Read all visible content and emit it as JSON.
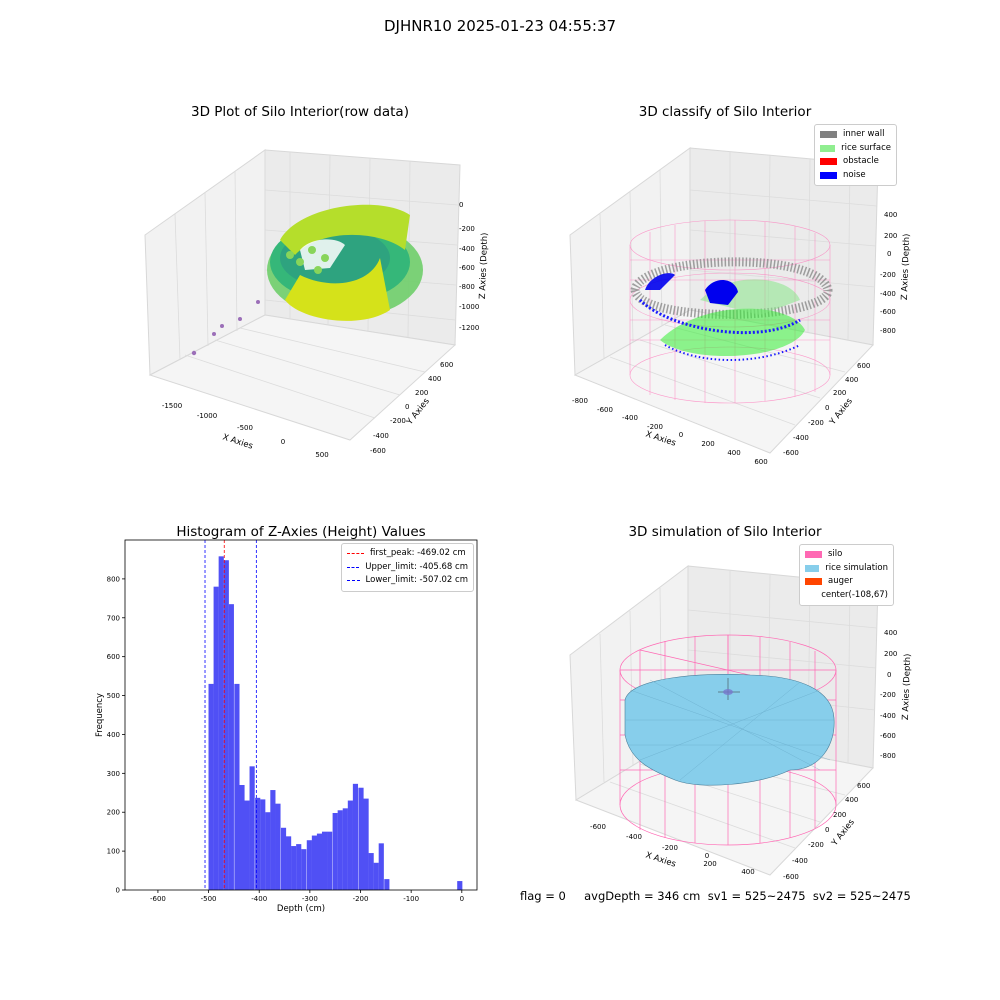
{
  "suptitle": "DJHNR10 2025-01-23 04:55:37",
  "panels": {
    "raw": {
      "title": "3D Plot of Silo Interior(row data)",
      "xlabel": "X Axies",
      "ylabel": "Y Axies",
      "zlabel": "Z Axies (Depth)",
      "x_ticks": [
        "-1500",
        "-1000",
        "-500",
        "0",
        "500"
      ],
      "y_ticks": [
        "-600",
        "-400",
        "-200",
        "0",
        "200",
        "400",
        "600"
      ],
      "z_ticks": [
        "0",
        "-200",
        "-400",
        "-600",
        "-800",
        "-1000",
        "-1200"
      ]
    },
    "classify": {
      "title": "3D classify of Silo Interior",
      "xlabel": "X Axies",
      "ylabel": "Y Axies",
      "zlabel": "Z Axies (Depth)",
      "x_ticks": [
        "-800",
        "-600",
        "-400",
        "-200",
        "0",
        "200",
        "400",
        "600"
      ],
      "y_ticks": [
        "-600",
        "-400",
        "-200",
        "0",
        "200",
        "400",
        "600"
      ],
      "z_ticks": [
        "400",
        "200",
        "0",
        "-200",
        "-400",
        "-600",
        "-800"
      ],
      "legend": [
        {
          "label": "inner wall",
          "color": "#808080"
        },
        {
          "label": "rice surface",
          "color": "#90ee90"
        },
        {
          "label": "obstacle",
          "color": "#ff0000"
        },
        {
          "label": "noise",
          "color": "#0000ff"
        }
      ]
    },
    "simulation": {
      "title": "3D simulation of Silo Interior",
      "xlabel": "X Axies",
      "ylabel": "Y Axies",
      "zlabel": "Z Axies (Depth)",
      "x_ticks": [
        "-600",
        "-400",
        "-200",
        "0",
        "200",
        "400"
      ],
      "y_ticks": [
        "-600",
        "-400",
        "-200",
        "0",
        "200",
        "400",
        "600"
      ],
      "z_ticks": [
        "400",
        "200",
        "0",
        "-200",
        "-400",
        "-600",
        "-800"
      ],
      "legend": [
        {
          "label": "silo",
          "color": "#ff69b4"
        },
        {
          "label": "rice simulation",
          "color": "#87ceeb"
        },
        {
          "label": "auger",
          "color": "#ff4500"
        },
        {
          "label": "center(-108,67)",
          "color": ""
        }
      ]
    }
  },
  "chart_data": {
    "type": "bar",
    "title": "Histogram of Z-Axies (Height) Values",
    "xlabel": "Depth (cm)",
    "ylabel": "Frequency",
    "xlim": [
      -665,
      30
    ],
    "ylim": [
      0,
      900
    ],
    "x_ticks": [
      -600,
      -500,
      -400,
      -300,
      -200,
      -100,
      0
    ],
    "y_ticks": [
      0,
      100,
      200,
      300,
      400,
      500,
      600,
      700,
      800
    ],
    "bar_color": "#5050f5",
    "bin_width": 10.2,
    "bins": [
      {
        "x": -495,
        "value": 530
      },
      {
        "x": -485,
        "value": 780
      },
      {
        "x": -475,
        "value": 858
      },
      {
        "x": -465,
        "value": 848
      },
      {
        "x": -455,
        "value": 735
      },
      {
        "x": -444,
        "value": 530
      },
      {
        "x": -434,
        "value": 270
      },
      {
        "x": -424,
        "value": 230
      },
      {
        "x": -414,
        "value": 318
      },
      {
        "x": -403,
        "value": 237
      },
      {
        "x": -393,
        "value": 233
      },
      {
        "x": -383,
        "value": 200
      },
      {
        "x": -373,
        "value": 257
      },
      {
        "x": -363,
        "value": 222
      },
      {
        "x": -352,
        "value": 160
      },
      {
        "x": -342,
        "value": 138
      },
      {
        "x": -332,
        "value": 113
      },
      {
        "x": -322,
        "value": 118
      },
      {
        "x": -312,
        "value": 105
      },
      {
        "x": -301,
        "value": 128
      },
      {
        "x": -291,
        "value": 140
      },
      {
        "x": -281,
        "value": 145
      },
      {
        "x": -271,
        "value": 150
      },
      {
        "x": -261,
        "value": 150
      },
      {
        "x": -250,
        "value": 198
      },
      {
        "x": -240,
        "value": 205
      },
      {
        "x": -230,
        "value": 210
      },
      {
        "x": -220,
        "value": 230
      },
      {
        "x": -210,
        "value": 273
      },
      {
        "x": -199,
        "value": 263
      },
      {
        "x": -189,
        "value": 235
      },
      {
        "x": -179,
        "value": 95
      },
      {
        "x": -169,
        "value": 70
      },
      {
        "x": -159,
        "value": 120
      },
      {
        "x": -148,
        "value": 28
      },
      {
        "x": -4,
        "value": 23
      }
    ],
    "reference_lines": [
      {
        "label": "first_peak: -469.02 cm",
        "x": -469.02,
        "color": "#ff0000"
      },
      {
        "label": "Upper_limit: -405.68 cm",
        "x": -405.68,
        "color": "#0000ff"
      },
      {
        "label": "Lower_limit: -507.02 cm",
        "x": -507.02,
        "color": "#0000ff"
      }
    ]
  },
  "status": {
    "text": "flag = 0     avgDepth = 346 cm  sv1 = 525~2475  sv2 = 525~2475"
  }
}
